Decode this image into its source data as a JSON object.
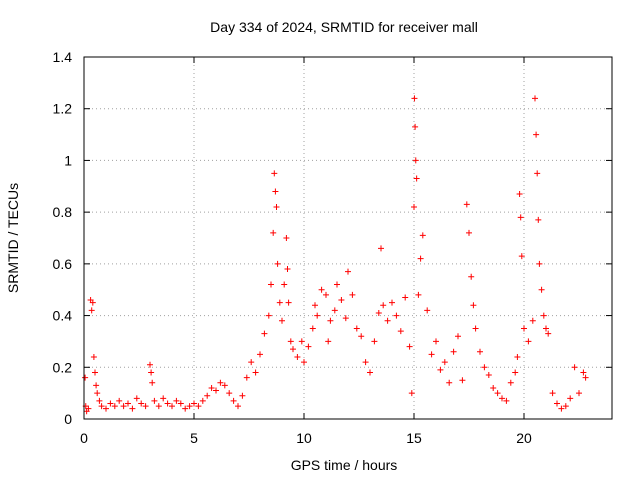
{
  "chart_data": {
    "type": "scatter",
    "title": "Day 334 of 2024, SRMTID for receiver mall",
    "xlabel": "GPS time / hours",
    "ylabel": "SRMTID / TECUs",
    "xlim": [
      0,
      24
    ],
    "ylim": [
      0,
      1.4
    ],
    "x_ticks": [
      0,
      5,
      10,
      15,
      20
    ],
    "x_tick_labels": [
      "0",
      "5",
      "10",
      "15",
      "20"
    ],
    "y_ticks": [
      0,
      0.2,
      0.4,
      0.6,
      0.8,
      1,
      1.2,
      1.4
    ],
    "y_tick_labels": [
      "0",
      "0.2",
      "0.4",
      "0.6",
      "0.8",
      "1",
      "1.2",
      "1.4"
    ],
    "grid": true,
    "marker": "+",
    "color": "#ff0000",
    "series": [
      {
        "name": "SRMTID",
        "points": [
          [
            0.05,
            0.16
          ],
          [
            0.08,
            0.05
          ],
          [
            0.12,
            0.03
          ],
          [
            0.2,
            0.04
          ],
          [
            0.3,
            0.46
          ],
          [
            0.35,
            0.42
          ],
          [
            0.4,
            0.45
          ],
          [
            0.45,
            0.24
          ],
          [
            0.5,
            0.18
          ],
          [
            0.55,
            0.13
          ],
          [
            0.6,
            0.1
          ],
          [
            0.7,
            0.07
          ],
          [
            0.8,
            0.05
          ],
          [
            1.0,
            0.04
          ],
          [
            1.2,
            0.06
          ],
          [
            1.4,
            0.05
          ],
          [
            1.6,
            0.07
          ],
          [
            1.8,
            0.05
          ],
          [
            2.0,
            0.06
          ],
          [
            2.2,
            0.04
          ],
          [
            2.4,
            0.08
          ],
          [
            2.6,
            0.06
          ],
          [
            2.8,
            0.05
          ],
          [
            3.0,
            0.21
          ],
          [
            3.05,
            0.18
          ],
          [
            3.1,
            0.14
          ],
          [
            3.2,
            0.07
          ],
          [
            3.4,
            0.05
          ],
          [
            3.6,
            0.08
          ],
          [
            3.8,
            0.06
          ],
          [
            4.0,
            0.05
          ],
          [
            4.2,
            0.07
          ],
          [
            4.4,
            0.06
          ],
          [
            4.6,
            0.04
          ],
          [
            4.8,
            0.05
          ],
          [
            5.0,
            0.06
          ],
          [
            5.2,
            0.05
          ],
          [
            5.4,
            0.07
          ],
          [
            5.6,
            0.09
          ],
          [
            5.8,
            0.12
          ],
          [
            6.0,
            0.11
          ],
          [
            6.2,
            0.14
          ],
          [
            6.4,
            0.13
          ],
          [
            6.6,
            0.1
          ],
          [
            6.8,
            0.07
          ],
          [
            7.0,
            0.05
          ],
          [
            7.2,
            0.09
          ],
          [
            7.4,
            0.16
          ],
          [
            7.6,
            0.22
          ],
          [
            7.8,
            0.18
          ],
          [
            8.0,
            0.25
          ],
          [
            8.2,
            0.33
          ],
          [
            8.4,
            0.4
          ],
          [
            8.5,
            0.52
          ],
          [
            8.6,
            0.72
          ],
          [
            8.65,
            0.95
          ],
          [
            8.7,
            0.88
          ],
          [
            8.75,
            0.82
          ],
          [
            8.8,
            0.6
          ],
          [
            8.9,
            0.45
          ],
          [
            9.0,
            0.38
          ],
          [
            9.1,
            0.52
          ],
          [
            9.2,
            0.7
          ],
          [
            9.25,
            0.58
          ],
          [
            9.3,
            0.45
          ],
          [
            9.4,
            0.3
          ],
          [
            9.5,
            0.27
          ],
          [
            9.7,
            0.24
          ],
          [
            9.9,
            0.3
          ],
          [
            10.0,
            0.22
          ],
          [
            10.2,
            0.28
          ],
          [
            10.4,
            0.35
          ],
          [
            10.5,
            0.44
          ],
          [
            10.6,
            0.4
          ],
          [
            10.8,
            0.5
          ],
          [
            11.0,
            0.48
          ],
          [
            11.1,
            0.3
          ],
          [
            11.2,
            0.38
          ],
          [
            11.4,
            0.42
          ],
          [
            11.5,
            0.52
          ],
          [
            11.7,
            0.46
          ],
          [
            11.9,
            0.39
          ],
          [
            12.0,
            0.57
          ],
          [
            12.2,
            0.48
          ],
          [
            12.4,
            0.35
          ],
          [
            12.6,
            0.32
          ],
          [
            12.8,
            0.22
          ],
          [
            13.0,
            0.18
          ],
          [
            13.2,
            0.3
          ],
          [
            13.4,
            0.41
          ],
          [
            13.5,
            0.66
          ],
          [
            13.6,
            0.44
          ],
          [
            13.8,
            0.38
          ],
          [
            14.0,
            0.45
          ],
          [
            14.2,
            0.4
          ],
          [
            14.4,
            0.34
          ],
          [
            14.6,
            0.47
          ],
          [
            14.8,
            0.28
          ],
          [
            14.9,
            0.1
          ],
          [
            15.0,
            0.82
          ],
          [
            15.02,
            1.24
          ],
          [
            15.05,
            1.13
          ],
          [
            15.08,
            1.0
          ],
          [
            15.12,
            0.93
          ],
          [
            15.2,
            0.48
          ],
          [
            15.3,
            0.62
          ],
          [
            15.4,
            0.71
          ],
          [
            15.6,
            0.42
          ],
          [
            15.8,
            0.25
          ],
          [
            16.0,
            0.3
          ],
          [
            16.2,
            0.19
          ],
          [
            16.4,
            0.22
          ],
          [
            16.6,
            0.14
          ],
          [
            16.8,
            0.26
          ],
          [
            17.0,
            0.32
          ],
          [
            17.2,
            0.15
          ],
          [
            17.4,
            0.83
          ],
          [
            17.5,
            0.72
          ],
          [
            17.6,
            0.55
          ],
          [
            17.7,
            0.44
          ],
          [
            17.8,
            0.35
          ],
          [
            18.0,
            0.26
          ],
          [
            18.2,
            0.2
          ],
          [
            18.4,
            0.17
          ],
          [
            18.6,
            0.12
          ],
          [
            18.8,
            0.1
          ],
          [
            19.0,
            0.08
          ],
          [
            19.2,
            0.07
          ],
          [
            19.4,
            0.14
          ],
          [
            19.6,
            0.18
          ],
          [
            19.7,
            0.24
          ],
          [
            19.8,
            0.87
          ],
          [
            19.85,
            0.78
          ],
          [
            19.9,
            0.63
          ],
          [
            20.0,
            0.35
          ],
          [
            20.2,
            0.3
          ],
          [
            20.4,
            0.38
          ],
          [
            20.5,
            1.24
          ],
          [
            20.55,
            1.1
          ],
          [
            20.6,
            0.95
          ],
          [
            20.65,
            0.77
          ],
          [
            20.7,
            0.6
          ],
          [
            20.8,
            0.5
          ],
          [
            20.9,
            0.4
          ],
          [
            21.0,
            0.35
          ],
          [
            21.1,
            0.33
          ],
          [
            21.3,
            0.1
          ],
          [
            21.5,
            0.06
          ],
          [
            21.7,
            0.04
          ],
          [
            21.9,
            0.05
          ],
          [
            22.1,
            0.08
          ],
          [
            22.3,
            0.2
          ],
          [
            22.5,
            0.1
          ],
          [
            22.7,
            0.18
          ],
          [
            22.8,
            0.16
          ]
        ]
      }
    ]
  }
}
